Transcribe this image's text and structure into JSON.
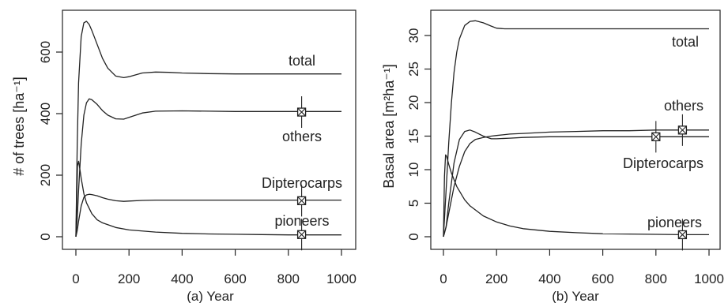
{
  "chart_data": [
    {
      "type": "line",
      "caption": "(a) Year",
      "ylabel": "# of trees [ha⁻¹]",
      "xlim": [
        0,
        1000
      ],
      "ylim": [
        0,
        700
      ],
      "x_ticks": [
        "0",
        "200",
        "400",
        "600",
        "800",
        "1000"
      ],
      "y_ticks": [
        "0",
        "200",
        "400",
        "600"
      ],
      "grid": false,
      "line_color": "#222222",
      "series": [
        {
          "name": "total",
          "x": [
            0,
            5,
            10,
            20,
            30,
            40,
            50,
            60,
            80,
            100,
            120,
            150,
            180,
            200,
            250,
            300,
            350,
            400,
            500,
            600,
            700,
            800,
            900,
            1000
          ],
          "y": [
            0,
            300,
            500,
            650,
            695,
            700,
            690,
            670,
            625,
            580,
            548,
            522,
            517,
            520,
            532,
            535,
            534,
            532,
            530,
            529,
            529,
            529,
            529,
            529
          ]
        },
        {
          "name": "others",
          "x": [
            0,
            5,
            10,
            20,
            30,
            40,
            50,
            60,
            80,
            100,
            120,
            150,
            180,
            200,
            250,
            300,
            400,
            500,
            600,
            700,
            800,
            900,
            1000
          ],
          "y": [
            0,
            60,
            150,
            300,
            395,
            435,
            448,
            445,
            430,
            410,
            395,
            383,
            382,
            388,
            402,
            408,
            409,
            408,
            407,
            407,
            407,
            407,
            407
          ]
        },
        {
          "name": "Dipterocarps",
          "x": [
            0,
            5,
            10,
            20,
            30,
            40,
            50,
            60,
            80,
            100,
            120,
            150,
            180,
            200,
            250,
            300,
            400,
            500,
            600,
            700,
            800,
            900,
            1000
          ],
          "y": [
            0,
            20,
            50,
            100,
            128,
            136,
            138,
            137,
            133,
            127,
            122,
            117,
            115,
            116,
            118,
            119,
            119,
            119,
            119,
            119,
            119,
            119,
            119
          ]
        },
        {
          "name": "pioneers",
          "x": [
            0,
            3,
            6,
            10,
            15,
            20,
            30,
            40,
            60,
            80,
            100,
            150,
            200,
            300,
            400,
            500,
            600,
            700,
            800,
            900,
            1000
          ],
          "y": [
            0,
            100,
            230,
            245,
            220,
            190,
            140,
            110,
            75,
            55,
            45,
            30,
            22,
            15,
            11,
            9,
            8,
            7,
            6,
            6,
            6
          ]
        }
      ],
      "markers": [
        {
          "series": "others",
          "x": 850,
          "y": 405
        },
        {
          "series": "Dipterocarps",
          "x": 850,
          "y": 117
        },
        {
          "series": "pioneers",
          "x": 850,
          "y": 7
        }
      ]
    },
    {
      "type": "line",
      "caption": "(b) Year",
      "ylabel": "Basal area [m²ha⁻¹]",
      "xlim": [
        0,
        1000
      ],
      "ylim": [
        0,
        33
      ],
      "x_ticks": [
        "0",
        "200",
        "400",
        "600",
        "800",
        "1000"
      ],
      "y_ticks": [
        "0",
        "5",
        "10",
        "15",
        "20",
        "25",
        "30"
      ],
      "grid": false,
      "line_color": "#222222",
      "series": [
        {
          "name": "total",
          "x": [
            0,
            10,
            20,
            30,
            40,
            50,
            60,
            80,
            100,
            120,
            150,
            180,
            200,
            230,
            300,
            400,
            500,
            600,
            700,
            800,
            900,
            1000
          ],
          "y": [
            0,
            7,
            14,
            20,
            24.5,
            27.5,
            29.5,
            31.5,
            32.1,
            32.2,
            31.9,
            31.4,
            31.1,
            31,
            31,
            31,
            31,
            31,
            31,
            31,
            31,
            31
          ]
        },
        {
          "name": "others",
          "x": [
            0,
            10,
            20,
            40,
            60,
            80,
            100,
            120,
            150,
            180,
            200,
            250,
            300,
            400,
            500,
            600,
            700,
            800,
            900,
            1000
          ],
          "y": [
            0,
            1.5,
            3.5,
            7.5,
            10.5,
            12.7,
            13.9,
            14.5,
            14.8,
            15,
            15.1,
            15.3,
            15.4,
            15.6,
            15.7,
            15.8,
            15.8,
            15.9,
            15.9,
            15.9
          ]
        },
        {
          "name": "Dipterocarps",
          "x": [
            0,
            10,
            20,
            40,
            60,
            80,
            100,
            120,
            150,
            180,
            200,
            250,
            300,
            400,
            500,
            600,
            700,
            800,
            900,
            1000
          ],
          "y": [
            0,
            1.5,
            5,
            11,
            14.5,
            15.7,
            15.9,
            15.6,
            15,
            14.6,
            14.6,
            14.7,
            14.8,
            14.9,
            14.9,
            14.9,
            14.9,
            14.9,
            14.9,
            14.9
          ]
        },
        {
          "name": "pioneers",
          "x": [
            0,
            4,
            8,
            12,
            20,
            30,
            50,
            80,
            100,
            150,
            200,
            250,
            300,
            400,
            500,
            600,
            700,
            800,
            900,
            1000
          ],
          "y": [
            0,
            9,
            12.2,
            12,
            10.8,
            9.5,
            7.5,
            5.5,
            4.6,
            3.1,
            2.2,
            1.6,
            1.2,
            0.8,
            0.6,
            0.45,
            0.4,
            0.35,
            0.3,
            0.3
          ]
        }
      ],
      "markers": [
        {
          "series": "others",
          "x": 900,
          "y": 15.9
        },
        {
          "series": "Dipterocarps",
          "x": 800,
          "y": 14.9
        },
        {
          "series": "pioneers",
          "x": 900,
          "y": 0.3
        }
      ]
    }
  ]
}
